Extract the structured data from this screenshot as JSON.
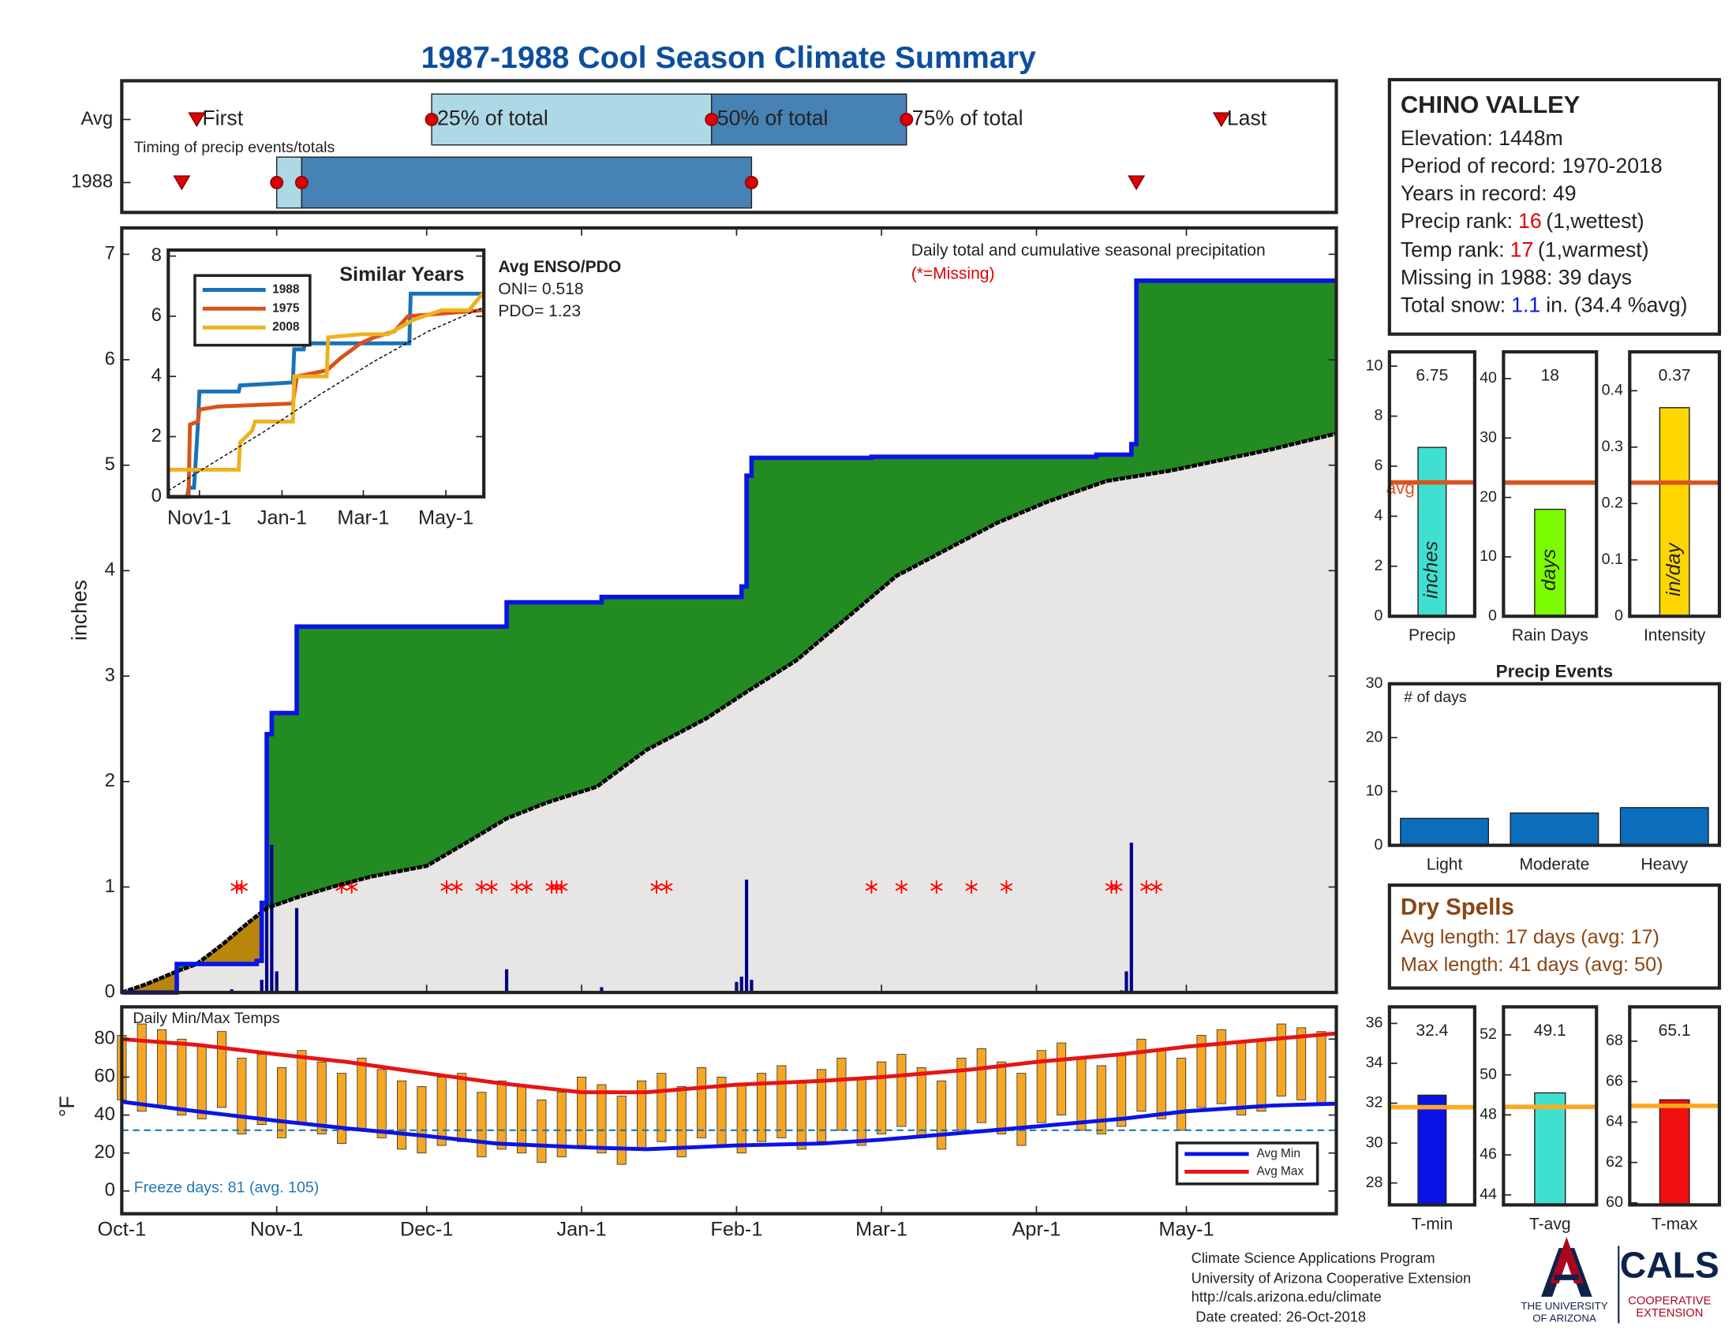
{
  "title": "1987-1988 Cool Season Climate Summary",
  "chart_data": [
    {
      "type": "timing",
      "categories": [
        "Avg",
        "1988"
      ],
      "annotation": "Timing of precip events/totals",
      "xlim": [
        0,
        243
      ],
      "box_colors": [
        "#add8e6",
        "#4682b4"
      ],
      "series": [
        {
          "name": "First",
          "marker": "triangle",
          "color": "#e00000",
          "values": [
            15,
            12
          ]
        },
        {
          "name": "25% of total",
          "marker": "circle",
          "color": "#e00000",
          "values": [
            62,
            31
          ]
        },
        {
          "name": "50% of total",
          "marker": "circle",
          "color": "#e00000",
          "values": [
            118,
            36
          ]
        },
        {
          "name": "75% of total",
          "marker": "circle",
          "color": "#e00000",
          "values": [
            157,
            126
          ]
        },
        {
          "name": "Last",
          "marker": "triangle",
          "color": "#e00000",
          "values": [
            220,
            203
          ]
        }
      ]
    },
    {
      "type": "cumulative",
      "ylabel": "inches",
      "annotation": "Daily total and cumulative seasonal precipitation",
      "missing_label": "(*=Missing)",
      "xlim": [
        0,
        243
      ],
      "xticks": [
        0,
        31,
        61,
        92,
        123,
        152,
        183,
        213
      ],
      "ylim": [
        0,
        7.25
      ],
      "yticks": [
        0,
        1,
        2,
        3,
        4,
        5,
        6,
        7
      ],
      "surplus_color": "#228b22",
      "deficit_color": "#b8860b",
      "base_color": "#e8e6e4",
      "series": [
        {
          "color": "#0a14e6",
          "x": [
            0,
            11,
            11,
            27,
            27,
            28,
            28,
            29,
            29,
            30,
            30,
            35,
            35,
            77,
            77,
            96,
            96,
            124,
            124,
            125,
            125,
            126,
            126,
            150,
            150,
            195,
            195,
            202,
            202,
            203,
            203,
            243
          ],
          "values": [
            0,
            0,
            0.27,
            0.27,
            0.3,
            0.3,
            0.85,
            0.85,
            2.45,
            2.45,
            2.65,
            2.65,
            3.47,
            3.47,
            3.7,
            3.7,
            3.75,
            3.75,
            3.85,
            3.85,
            4.9,
            4.9,
            5.07,
            5.07,
            5.08,
            5.08,
            5.1,
            5.1,
            5.2,
            5.2,
            6.75,
            6.75
          ]
        },
        {
          "color": "#000000",
          "x": [
            0,
            5,
            11,
            15,
            20,
            25,
            29,
            35,
            42,
            50,
            61,
            70,
            77,
            85,
            95,
            105,
            117,
            125,
            135,
            145,
            155,
            165,
            175,
            185,
            197,
            210,
            220,
            230,
            243
          ],
          "values": [
            0,
            0.08,
            0.2,
            0.27,
            0.45,
            0.65,
            0.8,
            0.9,
            1.0,
            1.1,
            1.2,
            1.45,
            1.65,
            1.8,
            1.95,
            2.3,
            2.6,
            2.85,
            3.15,
            3.55,
            3.95,
            4.2,
            4.45,
            4.65,
            4.85,
            4.95,
            5.05,
            5.15,
            5.3
          ]
        }
      ],
      "daily": {
        "color": "#00008b",
        "x": [
          22,
          28,
          29,
          30,
          31,
          35,
          77,
          96,
          123,
          124,
          125,
          126,
          200,
          201,
          202
        ],
        "values": [
          0.03,
          0.12,
          1.05,
          1.4,
          0.2,
          0.8,
          0.22,
          0.05,
          0.1,
          0.15,
          1.07,
          0.12,
          0.02,
          0.2,
          1.42
        ]
      },
      "missing": {
        "color": "#ff0000",
        "x": [
          23,
          24,
          44,
          46,
          65,
          67,
          72,
          74,
          79,
          81,
          86,
          87,
          88,
          107,
          109,
          150,
          156,
          163,
          170,
          177,
          198,
          199,
          205,
          207
        ],
        "values": [
          1,
          1,
          1,
          1,
          1,
          1,
          1,
          1,
          1,
          1,
          1,
          1,
          1,
          1,
          1,
          1,
          1,
          1,
          1,
          1,
          1,
          1,
          1,
          1
        ]
      }
    },
    {
      "type": "line",
      "title": "Similar Years",
      "annotations": [
        "Avg ENSO/PDO",
        "ONI= 0.518",
        "PDO= 1.23"
      ],
      "xlim": [
        8,
        241
      ],
      "xticks": [
        {
          "value": 31,
          "label": "Nov1-1"
        },
        {
          "value": 92,
          "label": "Jan-1"
        },
        {
          "value": 152,
          "label": "Mar-1"
        },
        {
          "value": 213,
          "label": "May-1"
        }
      ],
      "ylim": [
        0,
        8.2
      ],
      "yticks": [
        0,
        2,
        4,
        6,
        8
      ],
      "series": [
        {
          "name": "1988",
          "color": "#1a72b8",
          "x": [
            8,
            22,
            23,
            27,
            28,
            30,
            31,
            35,
            60,
            61,
            100,
            101,
            108,
            109,
            186,
            187,
            241
          ],
          "values": [
            0,
            0,
            0.3,
            0.3,
            1.0,
            2.5,
            3.5,
            3.5,
            3.5,
            3.7,
            3.8,
            4.9,
            4.9,
            5.1,
            5.1,
            6.75,
            6.75
          ]
        },
        {
          "name": "1975",
          "color": "#d95319",
          "x": [
            8,
            23,
            24,
            30,
            31,
            45,
            100,
            103,
            125,
            135,
            150,
            160,
            175,
            185,
            241
          ],
          "values": [
            0,
            0,
            2.4,
            2.5,
            2.9,
            3.0,
            3.1,
            4.0,
            4.2,
            4.6,
            5.1,
            5.3,
            5.5,
            6.0,
            6.2
          ]
        },
        {
          "name": "2008",
          "color": "#edb120",
          "x": [
            8,
            30,
            31,
            60,
            61,
            70,
            72,
            100,
            101,
            125,
            126,
            150,
            170,
            190,
            210,
            230,
            241
          ],
          "values": [
            0.9,
            0.9,
            0.9,
            0.9,
            1.8,
            2.2,
            2.5,
            2.5,
            4.0,
            4.0,
            5.3,
            5.4,
            5.4,
            5.9,
            6.2,
            6.2,
            6.8
          ]
        },
        {
          "color": "#000000",
          "style": "dashed",
          "x": [
            8,
            40,
            80,
            120,
            160,
            200,
            241
          ],
          "values": [
            0.2,
            1.1,
            2.2,
            3.4,
            4.5,
            5.5,
            6.3
          ]
        }
      ]
    },
    {
      "type": "temp",
      "title": "Daily Min/Max Temps",
      "ylabel": "°F",
      "annotation": "Freeze days: 81 (avg. 105)",
      "xlim": [
        0,
        243
      ],
      "xticks": [
        {
          "value": 0,
          "label": "Oct-1"
        },
        {
          "value": 31,
          "label": "Nov-1"
        },
        {
          "value": 61,
          "label": "Dec-1"
        },
        {
          "value": 92,
          "label": "Jan-1"
        },
        {
          "value": 123,
          "label": "Feb-1"
        },
        {
          "value": 152,
          "label": "Mar-1"
        },
        {
          "value": 183,
          "label": "Apr-1"
        },
        {
          "value": 213,
          "label": "May-1"
        }
      ],
      "ylim": [
        -12,
        97
      ],
      "yticks": [
        0,
        20,
        40,
        60,
        80
      ],
      "freeze_line": 32,
      "freeze_color": "#1f77b4",
      "bars": {
        "color": "#f5a623",
        "x": [
          0,
          4,
          8,
          12,
          16,
          20,
          24,
          28,
          32,
          36,
          40,
          44,
          48,
          52,
          56,
          60,
          64,
          68,
          72,
          76,
          80,
          84,
          88,
          92,
          96,
          100,
          104,
          108,
          112,
          116,
          120,
          124,
          128,
          132,
          136,
          140,
          144,
          148,
          152,
          156,
          160,
          164,
          168,
          172,
          176,
          180,
          184,
          188,
          192,
          196,
          200,
          204,
          208,
          212,
          216,
          220,
          224,
          228,
          232,
          236,
          240
        ],
        "low": [
          48,
          42,
          45,
          40,
          38,
          44,
          30,
          35,
          28,
          36,
          30,
          25,
          32,
          28,
          22,
          20,
          24,
          26,
          18,
          22,
          20,
          15,
          18,
          24,
          20,
          14,
          22,
          26,
          18,
          28,
          24,
          20,
          26,
          28,
          22,
          26,
          32,
          24,
          30,
          34,
          28,
          22,
          32,
          36,
          30,
          24,
          36,
          40,
          32,
          30,
          34,
          42,
          38,
          32,
          44,
          46,
          40,
          42,
          50,
          48,
          45
        ],
        "high": [
          82,
          88,
          85,
          80,
          76,
          84,
          70,
          72,
          65,
          74,
          68,
          62,
          70,
          64,
          58,
          55,
          60,
          62,
          52,
          58,
          55,
          48,
          52,
          60,
          56,
          50,
          58,
          62,
          55,
          65,
          60,
          56,
          62,
          66,
          58,
          64,
          70,
          60,
          68,
          72,
          65,
          58,
          70,
          75,
          68,
          62,
          74,
          78,
          70,
          66,
          72,
          80,
          75,
          70,
          82,
          85,
          78,
          80,
          88,
          86,
          84
        ]
      },
      "series": [
        {
          "name": "Avg Min",
          "color": "#0a14e6",
          "x": [
            0,
            15,
            31,
            45,
            61,
            75,
            92,
            105,
            123,
            140,
            152,
            170,
            183,
            200,
            213,
            230,
            243
          ],
          "values": [
            47,
            42,
            37,
            33,
            29,
            25,
            23,
            22,
            24,
            25,
            27,
            31,
            34,
            38,
            42,
            45,
            46
          ]
        },
        {
          "name": "Avg Max",
          "color": "#e61414",
          "x": [
            0,
            15,
            31,
            45,
            61,
            75,
            92,
            105,
            123,
            140,
            152,
            170,
            183,
            200,
            213,
            230,
            243
          ],
          "values": [
            80,
            77,
            72,
            68,
            62,
            57,
            52,
            52,
            56,
            58,
            60,
            64,
            68,
            72,
            76,
            80,
            83
          ]
        }
      ]
    },
    {
      "type": "summary_bar",
      "categories": [
        "Precip"
      ],
      "values": [
        6.75
      ],
      "unit": "inches",
      "color": "#40e0d0",
      "avg": 5.35,
      "avg_label": "avg",
      "avg_color": "#d9541e",
      "ylim": [
        0,
        10.57
      ],
      "yticks": [
        0,
        2,
        4,
        6,
        8,
        10
      ]
    },
    {
      "type": "summary_bar",
      "categories": [
        "Rain Days"
      ],
      "values": [
        18
      ],
      "unit": "days",
      "color": "#7cfc00",
      "avg": 22.5,
      "avg_color": "#d9541e",
      "ylim": [
        0,
        44.5
      ],
      "yticks": [
        0,
        10,
        20,
        30,
        40
      ]
    },
    {
      "type": "summary_bar",
      "categories": [
        "Intensity"
      ],
      "values": [
        0.37
      ],
      "unit": "in/day",
      "color": "#ffd700",
      "avg": 0.237,
      "avg_color": "#d9541e",
      "ylim": [
        0,
        0.469
      ],
      "yticks": [
        0,
        0.1,
        0.2,
        0.3,
        0.4
      ]
    },
    {
      "type": "bar",
      "title": "Precip Events",
      "annotation": "# of days",
      "categories": [
        "Light",
        "Moderate",
        "Heavy"
      ],
      "values": [
        5,
        6,
        7
      ],
      "color": "#0a6ebd",
      "ylim": [
        0,
        30
      ],
      "yticks": [
        0,
        10,
        20,
        30
      ]
    },
    {
      "type": "summary_bar",
      "categories": [
        "T-min"
      ],
      "values": [
        32.4
      ],
      "color": "#0a14e6",
      "avg": 31.8,
      "avg_color": "#ffa820",
      "ylim": [
        26.9,
        36.83
      ],
      "yticks": [
        28,
        30,
        32,
        34,
        36
      ]
    },
    {
      "type": "summary_bar",
      "categories": [
        "T-avg"
      ],
      "values": [
        49.1
      ],
      "color": "#40e0d0",
      "avg": 48.4,
      "avg_color": "#ffa820",
      "ylim": [
        43.5,
        53.4
      ],
      "yticks": [
        44,
        46,
        48,
        50,
        52
      ]
    },
    {
      "type": "summary_bar",
      "categories": [
        "T-max"
      ],
      "values": [
        65.1
      ],
      "color": "#f01010",
      "avg": 64.8,
      "avg_color": "#ffa820",
      "ylim": [
        59.9,
        69.7
      ],
      "yticks": [
        60,
        62,
        64,
        66,
        68
      ]
    }
  ],
  "station": {
    "name": "CHINO VALLEY",
    "elevation": "Elevation: 1448m",
    "period": "Period of record: 1970-2018",
    "years": "Years in record: 49",
    "precip_rank": {
      "label": "Precip rank:",
      "value": 16,
      "note": "(1,wettest)"
    },
    "temp_rank": {
      "label": "Temp rank:",
      "value": 17,
      "note": "(1,warmest)"
    },
    "missing": "Missing in 1988: 39 days",
    "snow": {
      "label": "Total snow:",
      "value": 1.1,
      "note": "in. (34.4 %avg)"
    }
  },
  "dry_spells": {
    "title": "Dry Spells",
    "avg": "Avg length: 17 days (avg: 17)",
    "max": "Max length: 41 days (avg: 50)"
  },
  "footer": {
    "lines": [
      "Climate Science Applications Program",
      "University of Arizona Cooperative Extension",
      "http://cals.arizona.edu/climate",
      "Date created: 26-Oct-2018"
    ],
    "university": [
      "THE UNIVERSITY",
      "OF ARIZONA"
    ],
    "cals": "CALS",
    "extension": [
      "COOPERATIVE",
      "EXTENSION"
    ]
  }
}
